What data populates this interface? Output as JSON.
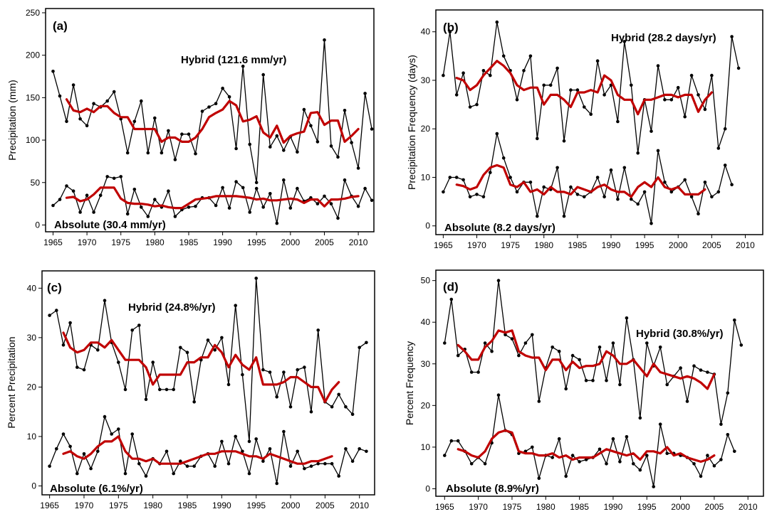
{
  "colors": {
    "raw_line": "#000000",
    "smooth_line": "#c00000",
    "axes": "#000000",
    "background": "#ffffff"
  },
  "chart_data": [
    {
      "type": "line",
      "panel_label": "(a)",
      "ylabel": "Precipitation (mm)",
      "xlabel": "",
      "x_ticks": [
        1965,
        1970,
        1975,
        1980,
        1985,
        1990,
        1995,
        2000,
        2005,
        2010
      ],
      "y_ticks": [
        0,
        50,
        100,
        150,
        200,
        250
      ],
      "xlim": [
        1963.9,
        2012.3
      ],
      "ylim": [
        -8,
        255
      ],
      "grid": false,
      "annotations": [
        {
          "text": "Hybrid (121.6 mm/yr)",
          "position": "upper-middle"
        },
        {
          "text": "Absolute (30.4 mm/yr)",
          "position": "bottom-left"
        }
      ],
      "series": [
        {
          "name": "Hybrid",
          "style": "raw",
          "x0": 1965,
          "values": [
            181,
            152,
            122,
            165,
            125,
            117,
            143,
            139,
            146,
            157,
            125,
            85,
            122,
            146,
            85,
            126,
            85,
            111,
            77,
            107,
            107,
            84,
            134,
            139,
            143,
            161,
            151,
            90,
            187,
            95,
            50,
            177,
            92,
            105,
            88,
            104,
            86,
            136,
            117,
            98,
            218,
            93,
            80,
            135,
            97,
            67,
            155,
            113
          ]
        },
        {
          "name": "Hybrid (smoothed)",
          "style": "smooth",
          "x0": 1967,
          "values": [
            148,
            135,
            133,
            137,
            133,
            140,
            140,
            132,
            127,
            127,
            113,
            113,
            113,
            113,
            98,
            103,
            103,
            98,
            98,
            103,
            113,
            127,
            132,
            136,
            146,
            141,
            122,
            124,
            128,
            109,
            103,
            117,
            97,
            105,
            108,
            110,
            132,
            133,
            118,
            123,
            123,
            98,
            105,
            113
          ]
        },
        {
          "name": "Absolute",
          "style": "raw",
          "x0": 1965,
          "values": [
            23,
            30,
            46,
            40,
            15,
            35,
            15,
            35,
            57,
            55,
            57,
            13,
            42,
            21,
            10,
            30,
            21,
            40,
            10,
            18,
            21,
            22,
            32,
            32,
            23,
            44,
            20,
            51,
            44,
            15,
            43,
            21,
            37,
            2,
            53,
            20,
            43,
            28,
            32,
            25,
            34,
            25,
            8,
            53,
            34,
            22,
            43,
            29
          ]
        },
        {
          "name": "Absolute (smoothed)",
          "style": "smooth",
          "x0": 1967,
          "values": [
            32,
            33,
            28,
            30,
            36,
            44,
            44,
            44,
            31,
            26,
            25,
            25,
            24,
            22,
            23,
            21,
            20,
            20,
            25,
            30,
            31,
            32,
            34,
            34,
            34,
            34,
            33,
            32,
            30,
            31,
            29,
            29,
            30,
            31,
            30,
            26,
            30,
            30,
            22,
            30,
            30,
            31,
            33,
            34
          ]
        }
      ]
    },
    {
      "type": "line",
      "panel_label": "(b)",
      "ylabel": "Precipitation Frequency (days)",
      "xlabel": "",
      "x_ticks": [
        1965,
        1970,
        1975,
        1980,
        1985,
        1990,
        1995,
        2000,
        2005,
        2010
      ],
      "y_ticks": [
        0,
        10,
        20,
        30,
        40
      ],
      "xlim": [
        1963.9,
        2012.6
      ],
      "ylim": [
        -1.8,
        44.5
      ],
      "grid": false,
      "annotations": [
        {
          "text": "Hybrid (28.2 days/yr)",
          "position": "upper-middle"
        },
        {
          "text": "Absolute (8.2 days/yr)",
          "position": "bottom-left"
        }
      ],
      "series": [
        {
          "name": "Hybrid",
          "style": "raw",
          "x0": 1965,
          "values": [
            31,
            40,
            27,
            31.5,
            24.5,
            25,
            32,
            31,
            42,
            35,
            32,
            26,
            32,
            35,
            18,
            29,
            29,
            32.5,
            17.5,
            28,
            28,
            24.5,
            23,
            34,
            27,
            29,
            21.5,
            38,
            29,
            15,
            26,
            19.5,
            33,
            26,
            26,
            28.5,
            22.5,
            31,
            27,
            24,
            31,
            16,
            20,
            39,
            32.5
          ]
        },
        {
          "name": "Hybrid (smoothed)",
          "style": "smooth",
          "x0": 1967,
          "values": [
            30.5,
            30,
            28,
            29,
            31,
            32.5,
            34,
            33,
            31.5,
            29,
            28,
            28.5,
            28.5,
            25,
            27,
            27,
            26,
            24.5,
            27.5,
            27.5,
            28,
            27.5,
            31,
            30,
            27,
            26,
            26,
            23,
            26,
            26,
            26.5,
            27,
            27,
            26.5,
            27,
            27,
            23.5,
            26,
            27.5
          ]
        },
        {
          "name": "Absolute",
          "style": "raw",
          "x0": 1965,
          "values": [
            7,
            10,
            10,
            9.5,
            6,
            6.5,
            6,
            11,
            19,
            14,
            10,
            7,
            9,
            9,
            2,
            8,
            7.5,
            12,
            2,
            8,
            6.5,
            6,
            7,
            10,
            6,
            11.5,
            5.5,
            12,
            5.5,
            4.5,
            7,
            0.5,
            15.5,
            9,
            7,
            8,
            9.5,
            6,
            2.5,
            9,
            6,
            7,
            12.5,
            8.5
          ]
        },
        {
          "name": "Absolute (smoothed)",
          "style": "smooth",
          "x0": 1967,
          "values": [
            8.5,
            8.2,
            7.5,
            8,
            10.5,
            12,
            12.5,
            12,
            8.5,
            8,
            9,
            7,
            7.5,
            6.5,
            8,
            7,
            7,
            6.5,
            8,
            7.5,
            7,
            8,
            8.5,
            7.5,
            7,
            7,
            6,
            8,
            9,
            8,
            10,
            8,
            7.5,
            8,
            6.5,
            6.5,
            6.5,
            7.5
          ]
        }
      ]
    },
    {
      "type": "line",
      "panel_label": "(c)",
      "ylabel": "Percent Precipitation",
      "xlabel": "",
      "x_ticks": [
        1965,
        1970,
        1975,
        1980,
        1985,
        1990,
        1995,
        2000,
        2005,
        2010
      ],
      "y_ticks": [
        0,
        10,
        20,
        30,
        40
      ],
      "xlim": [
        1963.9,
        2012.2
      ],
      "ylim": [
        -1.8,
        43.5
      ],
      "grid": false,
      "annotations": [
        {
          "text": "Hybrid (24.8%/yr)",
          "position": "upper-middle"
        },
        {
          "text": "Absolute (6.1%/yr)",
          "position": "bottom-left"
        }
      ],
      "series": [
        {
          "name": "Hybrid",
          "style": "raw",
          "x0": 1965,
          "values": [
            34.5,
            35.5,
            28.5,
            33,
            24,
            23.5,
            28.5,
            27.5,
            37.5,
            29,
            25,
            19.5,
            31.5,
            32.5,
            17.5,
            25,
            19.5,
            19.5,
            19.5,
            28,
            27,
            17,
            25.5,
            29.5,
            27.5,
            30,
            20.5,
            36.5,
            22.5,
            9,
            42,
            23.5,
            23,
            18,
            23,
            16,
            23.5,
            24,
            15,
            31.5,
            17,
            16,
            18.5,
            16,
            14.5,
            28,
            29
          ]
        },
        {
          "name": "Hybrid (smoothed)",
          "style": "smooth",
          "x0": 1967,
          "values": [
            31,
            28,
            27,
            27.5,
            29,
            29,
            28,
            29.5,
            27.5,
            25.5,
            25.5,
            25.5,
            24,
            20.5,
            22.5,
            22.5,
            22.5,
            22.5,
            25,
            25,
            26,
            26,
            28.5,
            27,
            24,
            26.5,
            24.5,
            23.5,
            26,
            20.5,
            20.5,
            20.5,
            21,
            22,
            22,
            21,
            20,
            20,
            17,
            19.5,
            21
          ]
        },
        {
          "name": "Absolute",
          "style": "raw",
          "x0": 1965,
          "values": [
            4,
            7.5,
            10.5,
            8,
            2.5,
            6.5,
            3.5,
            7,
            14,
            10.5,
            11.5,
            2.5,
            10.5,
            4.5,
            2,
            5.5,
            4.5,
            7,
            2.5,
            5,
            4,
            4,
            6,
            6.5,
            4,
            9,
            4.5,
            10,
            7,
            2.5,
            9.5,
            5,
            7.5,
            0.5,
            11,
            4,
            7,
            3.5,
            4,
            4.5,
            4.5,
            4.5,
            2,
            7.5,
            5,
            7.5,
            7
          ]
        },
        {
          "name": "Absolute (smoothed)",
          "style": "smooth",
          "x0": 1967,
          "values": [
            6.5,
            7,
            6,
            5.5,
            6.5,
            8,
            9,
            9,
            10,
            7,
            5.5,
            5.5,
            5,
            5.5,
            4.5,
            4.5,
            4.5,
            4.5,
            5,
            5.5,
            6,
            6.5,
            6.5,
            7,
            7,
            7,
            6.5,
            6,
            6,
            5.5,
            6.5,
            6,
            5.5,
            5,
            4.5,
            4.5,
            5,
            5,
            5.5,
            6
          ]
        }
      ]
    },
    {
      "type": "line",
      "panel_label": "(d)",
      "ylabel": "Percent Frequency",
      "xlabel": "",
      "x_ticks": [
        1965,
        1970,
        1975,
        1980,
        1985,
        1990,
        1995,
        2000,
        2005,
        2010
      ],
      "y_ticks": [
        0,
        10,
        20,
        30,
        40,
        50
      ],
      "xlim": [
        1963.7,
        2012.3
      ],
      "ylim": [
        -1.8,
        52.5
      ],
      "grid": false,
      "annotations": [
        {
          "text": "Hybrid (30.8%/yr)",
          "position": "upper-middle"
        },
        {
          "text": "Absolute (8.9%/yr)",
          "position": "bottom-left"
        }
      ],
      "series": [
        {
          "name": "Hybrid",
          "style": "raw",
          "x0": 1965,
          "values": [
            35,
            45.5,
            32,
            33.5,
            28,
            28,
            35,
            33,
            50,
            37,
            36,
            32,
            35,
            37,
            21,
            29,
            34,
            33,
            24,
            32,
            31,
            26,
            26,
            34,
            26,
            35,
            25,
            41,
            31,
            17,
            35,
            29.5,
            34,
            25,
            27,
            29,
            21,
            29.5,
            28.5,
            28,
            27.5,
            15.5,
            23,
            40.5,
            34.5
          ]
        },
        {
          "name": "Hybrid (smoothed)",
          "style": "smooth",
          "x0": 1967,
          "values": [
            34.5,
            33,
            31,
            31,
            34,
            35.5,
            38,
            37.5,
            38,
            33,
            32,
            31.5,
            31.5,
            28.5,
            31,
            31,
            28.5,
            30.5,
            29,
            29.5,
            29.5,
            30,
            33,
            32,
            30,
            30,
            31,
            29,
            27,
            30,
            28,
            27.5,
            27,
            26.5,
            27,
            26.5,
            25.5,
            24,
            27.5
          ]
        },
        {
          "name": "Absolute",
          "style": "raw",
          "x0": 1965,
          "values": [
            8,
            11.5,
            11.5,
            9,
            6,
            7.5,
            6,
            11,
            22.5,
            14,
            13,
            8.5,
            9,
            10,
            2.5,
            8,
            7.5,
            12,
            3,
            8,
            6.5,
            7,
            7.5,
            9.5,
            6,
            12,
            6.5,
            12.5,
            6,
            4.5,
            8,
            0.5,
            15.5,
            8.5,
            8.5,
            8,
            7.5,
            6,
            3,
            8,
            5.5,
            7,
            13,
            9
          ]
        },
        {
          "name": "Absolute (smoothed)",
          "style": "smooth",
          "x0": 1967,
          "values": [
            9.5,
            9,
            8,
            7.5,
            9,
            12,
            13.5,
            14,
            13.5,
            9,
            8.5,
            8.5,
            8,
            8,
            8.5,
            7.5,
            8,
            7,
            7.5,
            7.5,
            7.5,
            8.5,
            9.5,
            9,
            8.5,
            8,
            8.5,
            7,
            9,
            9,
            8.5,
            10,
            8,
            8.5,
            7.5,
            7,
            6.5,
            7,
            8
          ]
        }
      ]
    }
  ]
}
